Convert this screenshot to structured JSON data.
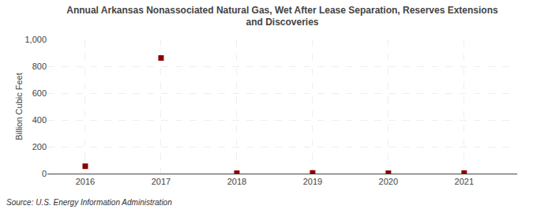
{
  "chart_data": {
    "type": "scatter",
    "title": "Annual Arkansas Nonassociated Natural Gas, Wet After Lease Separation, Reserves Extensions\nand Discoveries",
    "ylabel": "Billion Cubic Feet",
    "source": "Source: U.S. Energy Information Administration",
    "x": [
      2016,
      2017,
      2018,
      2019,
      2020,
      2021
    ],
    "values": [
      55,
      862,
      3,
      5,
      3,
      4
    ],
    "color": "#8B0000",
    "marker": "square",
    "xlim": [
      2015.5,
      2021.7
    ],
    "xticks": [
      2016,
      2017,
      2018,
      2019,
      2020,
      2021
    ],
    "ylim": [
      0,
      1000
    ],
    "yticks": [
      0,
      200,
      400,
      600,
      800,
      {
        "value": 1000,
        "label": "1,000"
      }
    ],
    "grid": true
  }
}
